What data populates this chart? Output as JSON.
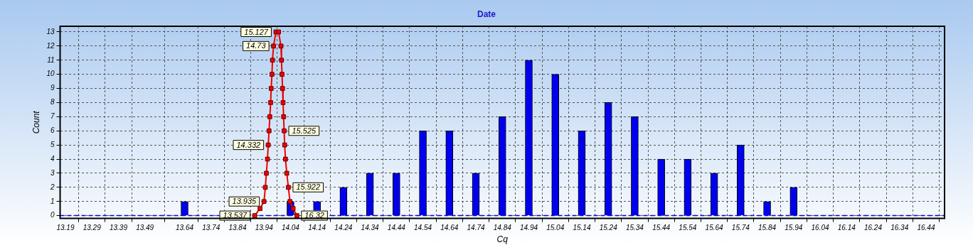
{
  "chart_data": {
    "type": "bar",
    "title": "Date",
    "xlabel": "Cq",
    "ylabel": "Count",
    "series": [
      {
        "color": "#0000ee",
        "x": [
          13.64,
          14.04,
          14.14,
          14.24,
          14.34,
          14.44,
          14.54,
          14.64,
          14.74,
          14.84,
          14.94,
          15.04,
          15.14,
          15.24,
          15.34,
          15.44,
          15.54,
          15.64,
          15.74,
          15.84,
          15.94
        ],
        "values": [
          1,
          1,
          1,
          2,
          3,
          3,
          6,
          6,
          3,
          7,
          11,
          10,
          6,
          8,
          7,
          4,
          4,
          3,
          5,
          1,
          2
        ]
      },
      {
        "type": "line",
        "color": "#ee0000",
        "marker": "square",
        "line_style": "solid",
        "x": [
          13.905,
          13.925,
          13.94,
          13.945,
          13.949,
          13.953,
          13.956,
          13.959,
          13.962,
          13.965,
          13.967,
          13.97,
          13.972,
          13.976,
          13.985,
          13.995,
          14.004,
          14.006,
          14.008,
          14.01,
          14.012,
          14.014,
          14.016,
          14.018,
          14.021,
          14.026,
          14.032,
          14.038,
          14.05,
          14.064
        ],
        "values": [
          0,
          0.5,
          1,
          2,
          3,
          4,
          5,
          6,
          7,
          8,
          9,
          10,
          11,
          12,
          13,
          13,
          12,
          11,
          10,
          9,
          8,
          7,
          6,
          5,
          4,
          3,
          2,
          1,
          0.5,
          0
        ]
      }
    ],
    "annotations": [
      {
        "text": "13.537",
        "x": 13.905,
        "y": 0
      },
      {
        "text": "13.935",
        "x": 13.94,
        "y": 1
      },
      {
        "text": "14.332",
        "x": 13.956,
        "y": 5
      },
      {
        "text": "14.73",
        "x": 13.976,
        "y": 12
      },
      {
        "text": "15.127",
        "x": 13.985,
        "y": 13
      },
      {
        "text": "15.525",
        "x": 14.016,
        "y": 6
      },
      {
        "text": "15.922",
        "x": 14.032,
        "y": 2
      },
      {
        "text": "16.32",
        "x": 14.064,
        "y": 0
      }
    ],
    "ref_lines": [
      {
        "axis": "y",
        "value": 0,
        "color": "#0000ee",
        "line_style": "dashed"
      }
    ],
    "xlim": [
      13.17,
      16.51
    ],
    "xticks": [
      13.19,
      13.29,
      13.39,
      13.49,
      13.64,
      13.74,
      13.84,
      13.94,
      14.04,
      14.14,
      14.24,
      14.34,
      14.44,
      14.54,
      14.64,
      14.74,
      14.84,
      14.94,
      15.04,
      15.14,
      15.24,
      15.34,
      15.44,
      15.54,
      15.64,
      15.74,
      15.84,
      15.94,
      16.04,
      16.14,
      16.24,
      16.34,
      16.44
    ],
    "ylim": [
      -0.2,
      13.4
    ],
    "yticks": [
      0,
      1,
      2,
      3,
      4,
      5,
      6,
      7,
      8,
      9,
      10,
      11,
      12,
      13
    ],
    "grid": true,
    "legend": false
  }
}
